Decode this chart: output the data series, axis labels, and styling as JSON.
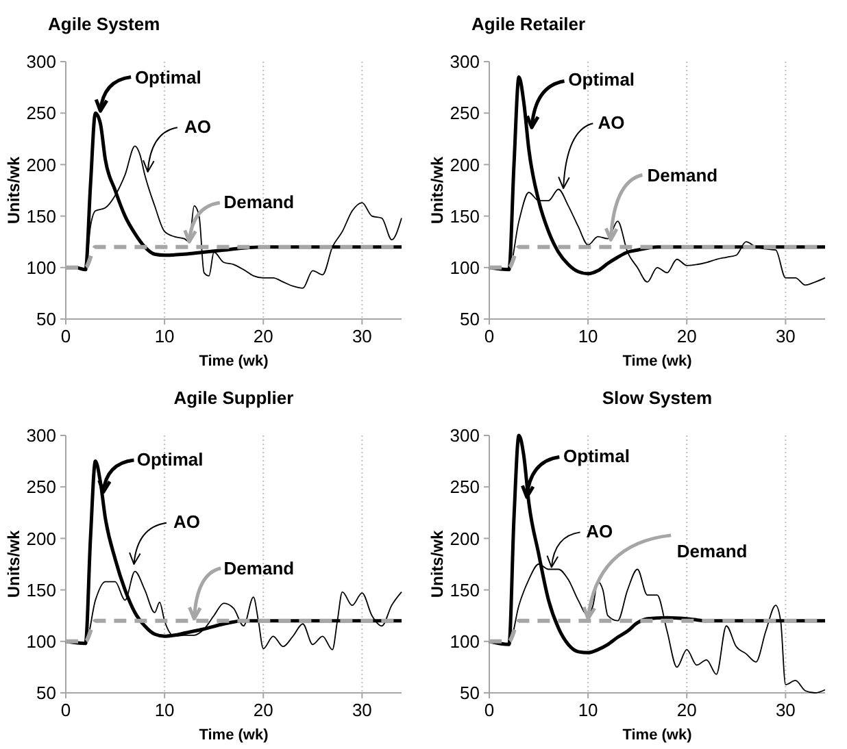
{
  "chart_data": [
    {
      "type": "line",
      "title": "Agile System",
      "xlabel": "Time (wk)",
      "ylabel": "Units/wk",
      "xlim": [
        0,
        34
      ],
      "ylim": [
        50,
        300
      ],
      "xticks": [
        0,
        10,
        20,
        30
      ],
      "yticks": [
        50,
        100,
        150,
        200,
        250,
        300
      ],
      "grid": "x",
      "series": [
        {
          "name": "Optimal",
          "color": "#000000",
          "line_style": "solid",
          "x": [
            0,
            1,
            2,
            2.5,
            3,
            3.5,
            4,
            5,
            6,
            7,
            8,
            9,
            10,
            12,
            14,
            16,
            18,
            20,
            25,
            30,
            34
          ],
          "values": [
            100,
            100,
            98,
            180,
            250,
            240,
            205,
            175,
            150,
            133,
            120,
            113,
            112,
            113,
            115,
            117,
            119,
            120,
            120,
            120,
            120
          ]
        },
        {
          "name": "AO",
          "color": "#000000",
          "line_style": "solid",
          "x": [
            0,
            1.5,
            2,
            2.5,
            3,
            4,
            5,
            6,
            7,
            7.5,
            8,
            9,
            10,
            11,
            12,
            12.5,
            13,
            13.5,
            14,
            14.5,
            15,
            16,
            17,
            18,
            19,
            20,
            21,
            22,
            23,
            24,
            25,
            26,
            27,
            28,
            29,
            30,
            31,
            32,
            33,
            34
          ],
          "values": [
            100,
            100,
            98,
            140,
            155,
            158,
            170,
            190,
            218,
            210,
            190,
            160,
            135,
            130,
            128,
            125,
            160,
            150,
            95,
            92,
            115,
            105,
            103,
            98,
            92,
            90,
            90,
            86,
            82,
            80,
            97,
            93,
            120,
            135,
            155,
            163,
            150,
            148,
            127,
            148
          ]
        },
        {
          "name": "Demand",
          "color": "#a6a6a6",
          "line_style": "dashed",
          "x": [
            0,
            2,
            3,
            34
          ],
          "values": [
            100,
            100,
            120,
            120
          ]
        }
      ]
    },
    {
      "type": "line",
      "title": "Agile Retailer",
      "xlabel": "Time (wk)",
      "ylabel": "Units/wk",
      "xlim": [
        0,
        34
      ],
      "ylim": [
        50,
        300
      ],
      "xticks": [
        0,
        10,
        20,
        30
      ],
      "yticks": [
        50,
        100,
        150,
        200,
        250,
        300
      ],
      "grid": "x",
      "series": [
        {
          "name": "Optimal",
          "color": "#000000",
          "line_style": "solid",
          "x": [
            0,
            2,
            2.5,
            3,
            3.5,
            4,
            5,
            6,
            7,
            8,
            9,
            10,
            11,
            12,
            13,
            14,
            15,
            17,
            34
          ],
          "values": [
            100,
            98,
            200,
            285,
            260,
            215,
            165,
            135,
            115,
            103,
            96,
            94,
            97,
            104,
            110,
            115,
            117,
            120,
            120
          ]
        },
        {
          "name": "AO",
          "color": "#000000",
          "line_style": "solid",
          "x": [
            0,
            2,
            3,
            4,
            5,
            6,
            7,
            8,
            9,
            10,
            11,
            12,
            13,
            14,
            15,
            16,
            17,
            18,
            19,
            20,
            22,
            23,
            24,
            25,
            26,
            27,
            28,
            29,
            30,
            31,
            32,
            33,
            34
          ],
          "values": [
            100,
            98,
            145,
            173,
            165,
            165,
            176,
            160,
            140,
            122,
            130,
            128,
            145,
            115,
            100,
            86,
            100,
            95,
            108,
            102,
            105,
            108,
            110,
            112,
            125,
            120,
            118,
            117,
            90,
            90,
            83,
            86,
            90
          ]
        },
        {
          "name": "Demand",
          "color": "#a6a6a6",
          "line_style": "dashed",
          "x": [
            0,
            2,
            3,
            34
          ],
          "values": [
            100,
            100,
            120,
            120
          ]
        }
      ]
    },
    {
      "type": "line",
      "title": "Agile Supplier",
      "xlabel": "Time (wk)",
      "ylabel": "Units/wk",
      "xlim": [
        0,
        34
      ],
      "ylim": [
        50,
        300
      ],
      "xticks": [
        0,
        10,
        20,
        30
      ],
      "yticks": [
        50,
        100,
        150,
        200,
        250,
        300
      ],
      "grid": "x",
      "series": [
        {
          "name": "Optimal",
          "color": "#000000",
          "line_style": "solid",
          "x": [
            0,
            2,
            2.5,
            3,
            3.5,
            4,
            5,
            6,
            7,
            8,
            9,
            10,
            11,
            12,
            14,
            16,
            18,
            34
          ],
          "values": [
            100,
            98,
            200,
            275,
            255,
            220,
            180,
            150,
            128,
            115,
            107,
            105,
            106,
            108,
            112,
            117,
            120,
            120
          ]
        },
        {
          "name": "AO",
          "color": "#000000",
          "line_style": "solid",
          "x": [
            0,
            2,
            3,
            4,
            5,
            6,
            7,
            8,
            9,
            9.5,
            10,
            11,
            12,
            13,
            14,
            15,
            16,
            17,
            18,
            19,
            19.5,
            20,
            21,
            22,
            23,
            24,
            25,
            26,
            27,
            27.5,
            28,
            29,
            30,
            31,
            32,
            33,
            34
          ],
          "values": [
            100,
            98,
            140,
            158,
            158,
            140,
            168,
            150,
            128,
            138,
            120,
            105,
            106,
            106,
            112,
            125,
            137,
            132,
            115,
            143,
            120,
            93,
            105,
            95,
            105,
            117,
            97,
            105,
            92,
            120,
            148,
            135,
            147,
            125,
            115,
            135,
            148
          ]
        },
        {
          "name": "Demand",
          "color": "#a6a6a6",
          "line_style": "dashed",
          "x": [
            0,
            2,
            3,
            34
          ],
          "values": [
            100,
            100,
            120,
            120
          ]
        }
      ]
    },
    {
      "type": "line",
      "title": "Slow System",
      "xlabel": "Time (wk)",
      "ylabel": "Units/wk",
      "xlim": [
        0,
        34
      ],
      "ylim": [
        50,
        300
      ],
      "xticks": [
        0,
        10,
        20,
        30
      ],
      "yticks": [
        50,
        100,
        150,
        200,
        250,
        300
      ],
      "grid": "x",
      "series": [
        {
          "name": "Optimal",
          "color": "#000000",
          "line_style": "solid",
          "x": [
            0,
            2,
            2.5,
            3,
            3.5,
            4,
            5,
            6,
            7,
            8,
            9,
            10,
            11,
            12,
            13,
            14,
            15,
            16,
            18,
            20,
            22,
            34
          ],
          "values": [
            100,
            97,
            220,
            300,
            280,
            235,
            185,
            140,
            113,
            97,
            90,
            89,
            92,
            97,
            104,
            110,
            118,
            122,
            123,
            122,
            120,
            120
          ]
        },
        {
          "name": "AO",
          "color": "#000000",
          "line_style": "solid",
          "x": [
            0,
            2,
            3,
            4,
            5,
            6,
            7,
            8,
            9,
            10,
            10.5,
            11,
            11.5,
            12,
            13,
            14,
            15,
            16,
            17,
            18,
            19,
            20,
            21,
            22,
            23,
            24,
            25,
            26,
            27,
            28,
            29,
            29.5,
            30,
            31,
            32,
            33,
            34
          ],
          "values": [
            100,
            97,
            135,
            160,
            175,
            170,
            170,
            160,
            140,
            125,
            135,
            158,
            150,
            125,
            120,
            150,
            170,
            145,
            145,
            110,
            75,
            92,
            77,
            82,
            68,
            115,
            95,
            88,
            80,
            110,
            135,
            120,
            58,
            62,
            52,
            50,
            53
          ]
        },
        {
          "name": "Demand",
          "color": "#a6a6a6",
          "line_style": "dashed",
          "x": [
            0,
            2,
            3,
            34
          ],
          "values": [
            100,
            100,
            120,
            120
          ]
        }
      ]
    }
  ]
}
